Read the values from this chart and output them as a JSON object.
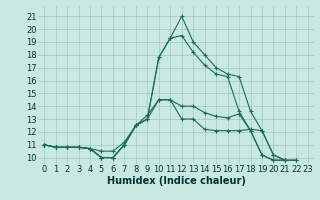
{
  "title": "",
  "xlabel": "Humidex (Indice chaleur)",
  "background_color": "#c8e8e0",
  "line_color": "#1a6b5a",
  "grid_color": "#a0c8c0",
  "xlim": [
    -0.5,
    23.5
  ],
  "ylim": [
    9.5,
    21.8
  ],
  "xticks": [
    0,
    1,
    2,
    3,
    4,
    5,
    6,
    7,
    8,
    9,
    10,
    11,
    12,
    13,
    14,
    15,
    16,
    17,
    18,
    19,
    20,
    21,
    22,
    23
  ],
  "yticks": [
    10,
    11,
    12,
    13,
    14,
    15,
    16,
    17,
    18,
    19,
    20,
    21
  ],
  "series": [
    {
      "x": [
        0,
        1,
        2,
        3,
        4,
        5,
        6,
        7,
        8,
        9,
        10,
        11,
        12,
        13,
        14,
        15,
        16,
        17,
        18,
        19,
        20,
        21,
        22
      ],
      "y": [
        11.0,
        10.8,
        10.8,
        10.8,
        10.7,
        10.0,
        10.0,
        11.0,
        12.5,
        13.0,
        17.8,
        19.3,
        21.0,
        19.0,
        18.0,
        17.0,
        16.5,
        16.3,
        13.6,
        12.1,
        10.2,
        9.8,
        9.8
      ]
    },
    {
      "x": [
        0,
        1,
        2,
        3,
        4,
        5,
        6,
        7,
        8,
        9,
        10,
        11,
        12,
        13,
        14,
        15,
        16,
        17,
        18,
        19,
        20,
        21,
        22
      ],
      "y": [
        11.0,
        10.8,
        10.8,
        10.8,
        10.7,
        10.0,
        10.0,
        11.0,
        12.5,
        13.0,
        17.8,
        19.3,
        19.5,
        18.2,
        17.2,
        16.5,
        16.3,
        13.6,
        12.1,
        10.2,
        9.8,
        9.8,
        null
      ]
    },
    {
      "x": [
        0,
        1,
        2,
        3,
        4,
        5,
        6,
        7,
        8,
        9,
        10,
        11,
        12,
        13,
        14,
        15,
        16,
        17,
        18,
        19,
        20,
        21,
        22
      ],
      "y": [
        11.0,
        10.8,
        10.8,
        10.8,
        10.7,
        10.5,
        10.5,
        11.2,
        12.5,
        13.3,
        14.5,
        14.5,
        14.0,
        14.0,
        13.5,
        13.2,
        13.1,
        13.4,
        12.1,
        10.2,
        9.8,
        9.8,
        null
      ]
    },
    {
      "x": [
        0,
        1,
        2,
        3,
        4,
        5,
        6,
        7,
        8,
        9,
        10,
        11,
        12,
        13,
        14,
        15,
        16,
        17,
        18,
        19,
        20,
        21,
        22
      ],
      "y": [
        11.0,
        10.8,
        10.8,
        10.8,
        10.7,
        10.0,
        10.0,
        11.0,
        12.5,
        13.0,
        14.5,
        14.5,
        13.0,
        13.0,
        12.2,
        12.1,
        12.1,
        12.1,
        12.2,
        12.1,
        10.2,
        9.8,
        9.8
      ]
    }
  ],
  "xlabel_fontsize": 7,
  "tick_fontsize": 6
}
